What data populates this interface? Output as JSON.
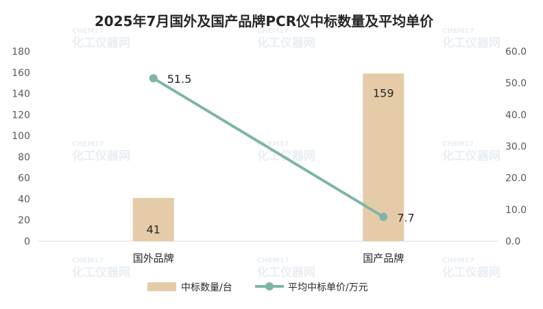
{
  "chart_data": {
    "type": "bar",
    "title": "2025年7月国外及国产品牌PCR仪中标数量及平均单价",
    "categories": [
      "国外品牌",
      "国产品牌"
    ],
    "series": [
      {
        "name": "中标数量/台",
        "type": "bar",
        "axis": "left",
        "values": [
          41,
          159
        ],
        "color": "#e6cba9"
      },
      {
        "name": "平均中标单价/万元",
        "type": "line",
        "axis": "right",
        "values": [
          51.5,
          7.7
        ],
        "color": "#7eb4aa"
      }
    ],
    "data_labels": {
      "bar": [
        "41",
        "159"
      ],
      "line": [
        "51.5",
        "7.7"
      ]
    },
    "y_left": {
      "min": 0,
      "max": 180,
      "step": 20,
      "ticks": [
        "0",
        "20",
        "40",
        "60",
        "80",
        "100",
        "120",
        "140",
        "160",
        "180"
      ]
    },
    "y_right": {
      "min": 0,
      "max": 60,
      "step": 10,
      "ticks": [
        "0.0",
        "10.0",
        "20.0",
        "30.0",
        "40.0",
        "50.0",
        "60.0"
      ]
    },
    "grid": false,
    "legend_position": "bottom"
  },
  "watermark": {
    "cn": "化工仪器网",
    "en": "CHEM17"
  }
}
